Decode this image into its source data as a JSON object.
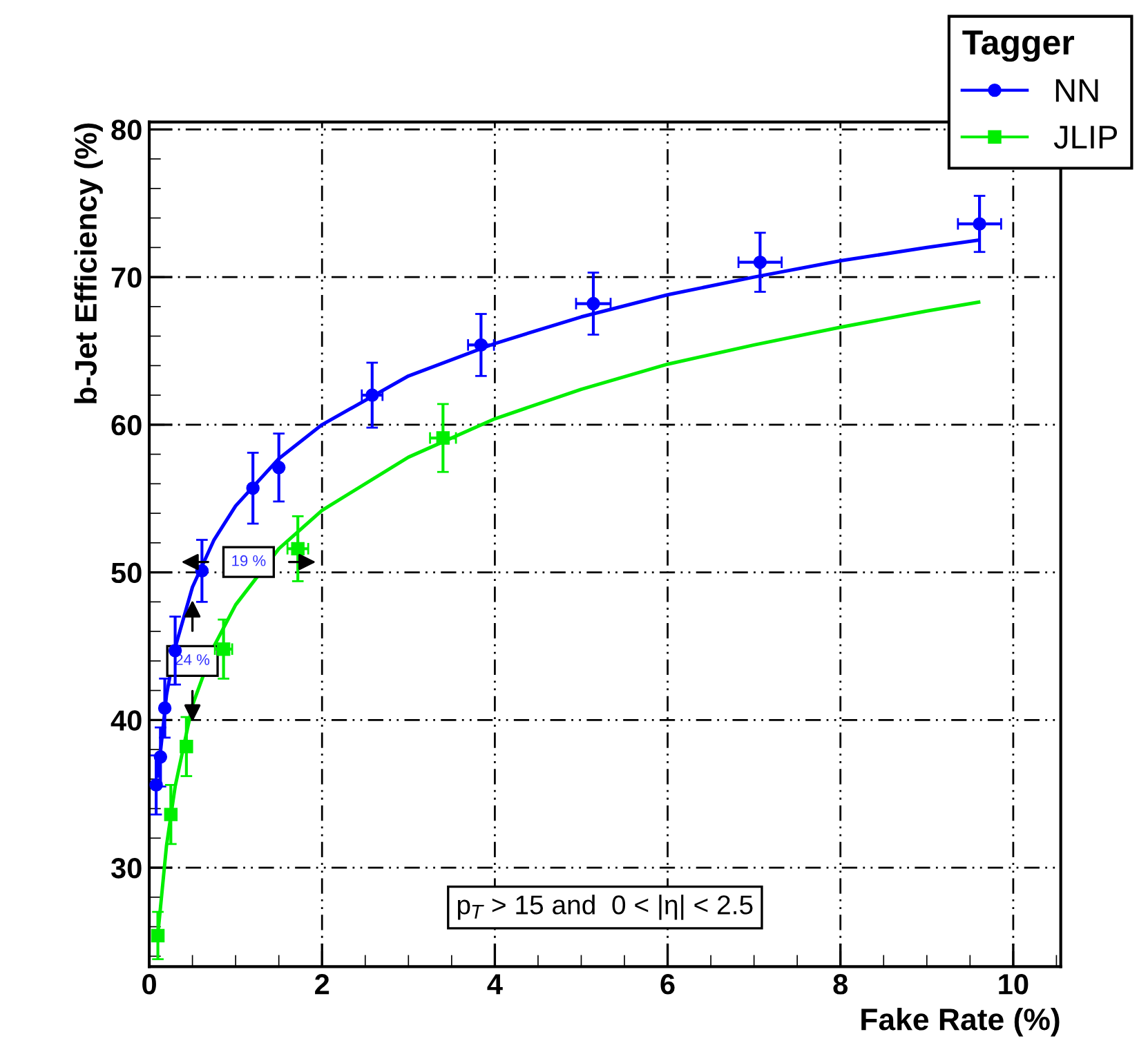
{
  "chart_data": {
    "type": "scatter",
    "xlabel": "Fake Rate (%)",
    "ylabel": "b-Jet Efficiency (%)",
    "legend_title": "Tagger",
    "legend": "top right",
    "grid": true,
    "xlim": [
      0,
      10.55
    ],
    "ylim": [
      23.3,
      80.5
    ],
    "xticks": [
      0,
      2,
      4,
      6,
      8,
      10
    ],
    "yticks": [
      30,
      40,
      50,
      60,
      70,
      80
    ],
    "series": [
      {
        "name": "NN",
        "color": "#0000ff",
        "marker": "circle",
        "x": [
          0.08,
          0.13,
          0.18,
          0.3,
          0.61,
          1.2,
          1.5,
          2.58,
          3.84,
          5.14,
          7.07,
          9.61
        ],
        "values": [
          35.6,
          37.5,
          40.8,
          44.7,
          50.1,
          55.7,
          57.1,
          62.0,
          65.4,
          68.2,
          71.0,
          73.6
        ],
        "errors": [
          2,
          2,
          2,
          2.3,
          2.1,
          2.4,
          2.3,
          2.2,
          2.1,
          2.1,
          2.0,
          1.9
        ],
        "xerrors": [
          null,
          null,
          null,
          null,
          null,
          null,
          null,
          0.12,
          0.15,
          0.2,
          0.25,
          0.25
        ]
      },
      {
        "name": "JLIP",
        "color": "#00ee00",
        "marker": "square",
        "x": [
          0.1,
          0.25,
          0.43,
          0.86,
          1.72,
          3.4
        ],
        "values": [
          25.4,
          33.6,
          38.2,
          44.8,
          51.6,
          59.1
        ],
        "errors": [
          1.6,
          2.0,
          2.0,
          2.0,
          2.2,
          2.3
        ],
        "xerrors": [
          null,
          null,
          null,
          0.1,
          0.12,
          0.15
        ]
      },
      {
        "type": "line",
        "color": "#0000ff",
        "x": [
          0.1,
          0.2,
          0.3,
          0.5,
          0.75,
          1,
          1.5,
          2,
          3,
          4,
          5,
          6,
          7,
          8,
          9,
          9.6
        ],
        "values": [
          36.2,
          41.7,
          44.9,
          49.0,
          52.2,
          54.5,
          57.7,
          60.0,
          63.3,
          65.5,
          67.3,
          68.8,
          70.0,
          71.1,
          72.0,
          72.5
        ]
      },
      {
        "type": "line",
        "color": "#00ee00",
        "x": [
          0.1,
          0.2,
          0.3,
          0.5,
          0.75,
          1,
          1.5,
          2,
          3,
          4,
          5,
          6,
          7,
          8,
          9,
          9.6
        ],
        "values": [
          25.5,
          31.5,
          35.5,
          41.0,
          45.0,
          47.8,
          51.6,
          54.2,
          57.8,
          60.4,
          62.4,
          64.1,
          65.4,
          66.6,
          67.7,
          68.3
        ]
      }
    ],
    "annotations": [
      {
        "text": "24 %",
        "x": 0.5,
        "y": 44.0
      },
      {
        "text": "19 %",
        "x": 1.15,
        "y": 50.7
      },
      "p$_{T}$ > 15 and  0 < |η| < 2.5"
    ]
  }
}
